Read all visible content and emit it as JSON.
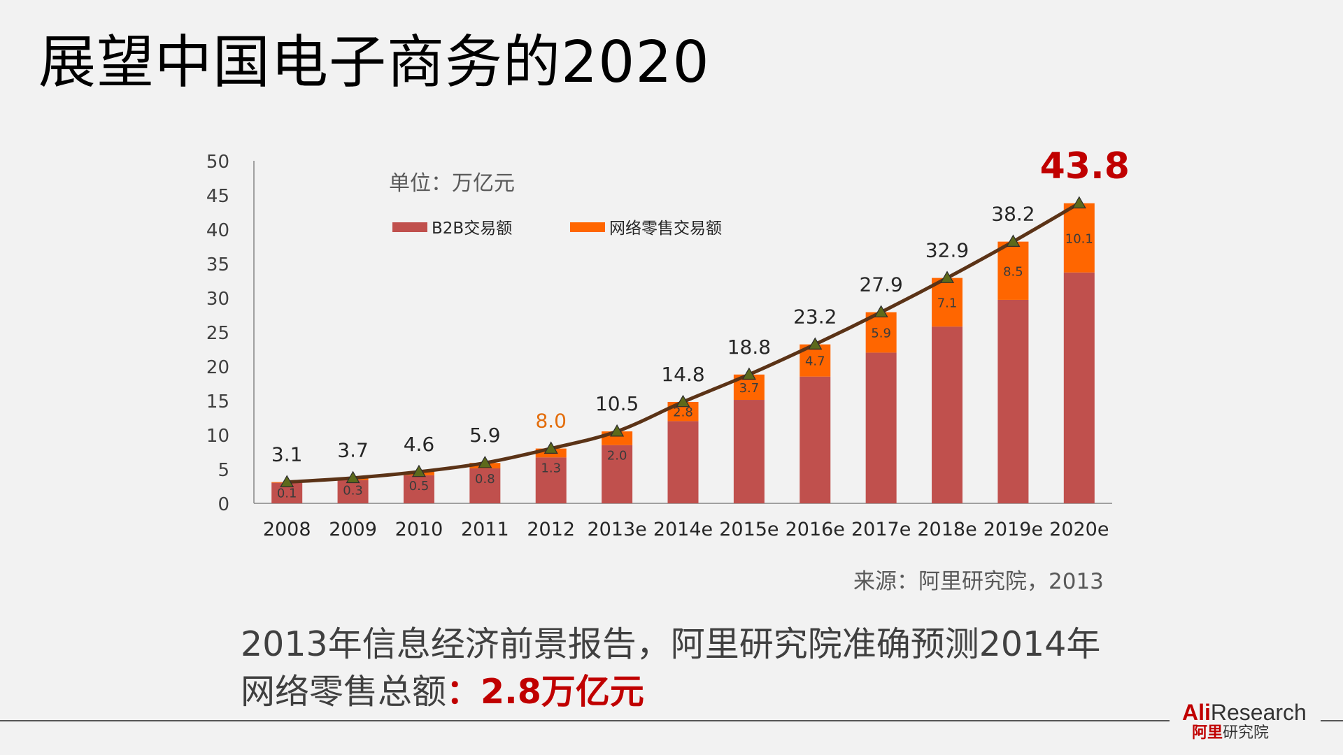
{
  "slide": {
    "title": "展望中国电子商务的2020",
    "source": "来源：阿里研究院，2013",
    "conclusion_line1": "2013年信息经济前景报告，阿里研究院准确预测2014年",
    "conclusion_line2_prefix": "网络零售总额",
    "conclusion_line2_highlight": "：2.8万亿元",
    "logo_line1_accent": "Ali",
    "logo_line1_rest": "Research",
    "logo_line2_accent": "阿里",
    "logo_line2_rest": "研究院"
  },
  "chart_data": {
    "type": "bar",
    "stacked": true,
    "unit_label": "单位：万亿元",
    "categories": [
      "2008",
      "2009",
      "2010",
      "2011",
      "2012",
      "2013e",
      "2014e",
      "2015e",
      "2016e",
      "2017e",
      "2018e",
      "2019e",
      "2020e"
    ],
    "series": [
      {
        "name": "B2B交易额",
        "color": "#c0504d",
        "values": [
          3.0,
          3.4,
          4.1,
          5.1,
          6.7,
          8.5,
          12.0,
          15.1,
          18.5,
          22.0,
          25.8,
          29.7,
          33.7
        ]
      },
      {
        "name": "网络零售交易额",
        "color": "#ff6600",
        "values": [
          0.1,
          0.3,
          0.5,
          0.8,
          1.3,
          2.0,
          2.8,
          3.7,
          4.7,
          5.9,
          7.1,
          8.5,
          10.1
        ]
      }
    ],
    "segment_labels": [
      "0.1",
      "0.3",
      "0.5",
      "0.8",
      "1.3",
      "2.0",
      "2.8",
      "3.7",
      "4.7",
      "5.9",
      "7.1",
      "8.5",
      "10.1"
    ],
    "total_line": {
      "color": "#5b3317",
      "marker_color": "#5d6a1b",
      "values": [
        3.1,
        3.7,
        4.6,
        5.9,
        8.0,
        10.5,
        14.8,
        18.8,
        23.2,
        27.9,
        32.9,
        38.2,
        43.8
      ],
      "labels": [
        "3.1",
        "3.7",
        "4.6",
        "5.9",
        "8.0",
        "10.5",
        "14.8",
        "18.8",
        "23.2",
        "27.9",
        "32.9",
        "38.2",
        "43.8"
      ]
    },
    "highlight_colors": {
      "2012": "#e36c09",
      "2020e": "#c00000"
    },
    "ylim": [
      0,
      50
    ],
    "yticks": [
      0,
      5,
      10,
      15,
      20,
      25,
      30,
      35,
      40,
      45,
      50
    ],
    "grid": false,
    "legend_position": "top-left",
    "title": "",
    "xlabel": "",
    "ylabel": ""
  }
}
